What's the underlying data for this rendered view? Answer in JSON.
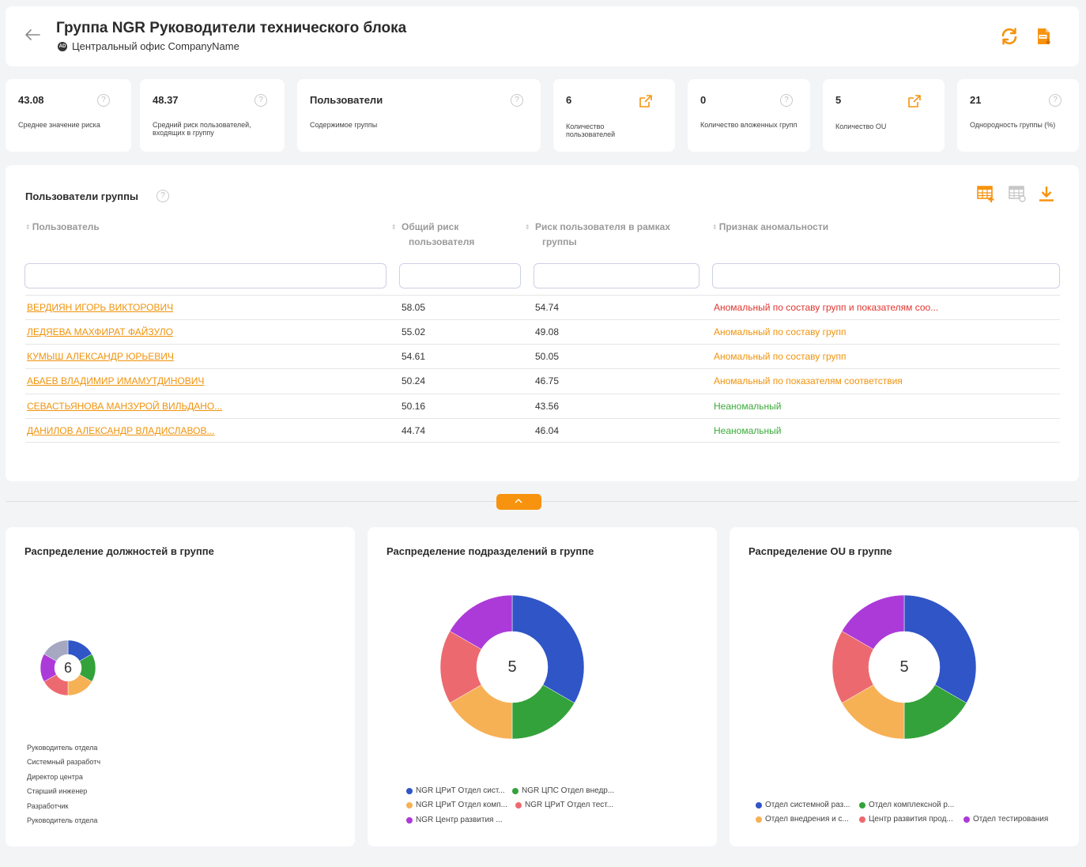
{
  "header": {
    "title": "Группа NGR Руководители технического блока",
    "badge": "AD",
    "subtitle": "Центральный офис CompanyName"
  },
  "stats": [
    {
      "value": "43.08",
      "label": "Среднее значение риска"
    },
    {
      "value": "48.37",
      "label": "Средний риск пользователей, входящих в группу"
    },
    {
      "value": "Пользователи",
      "label": "Содержимое группы"
    },
    {
      "value": "6",
      "label": "Количество пользователей"
    },
    {
      "value": "0",
      "label": "Количество вложенных групп"
    },
    {
      "value": "5",
      "label": "Количество OU"
    },
    {
      "value": "21",
      "label": "Однородность группы (%)"
    }
  ],
  "help_mark": "?",
  "users_table": {
    "title": "Пользователи группы",
    "columns": [
      "Пользователь",
      "Общий риск пользователя",
      "Риск пользователя в рамках группы",
      "Признак аномальности"
    ],
    "sort_glyph": "⇕",
    "rows": [
      {
        "user": "ВЕРДИЯН ИГОРЬ ВИКТОРОВИЧ",
        "total_risk": "58.05",
        "group_risk": "54.74",
        "status": "Аномальный по составу групп и показателям соо...",
        "status_color": "#e0342f"
      },
      {
        "user": "ЛЕДЯЕВА МАХФИРАТ ФАЙЗУЛО",
        "total_risk": "55.02",
        "group_risk": "49.08",
        "status": "Аномальный по составу групп",
        "status_color": "#f0930c"
      },
      {
        "user": "КУМЫШ АЛЕКСАНДР ЮРЬЕВИЧ",
        "total_risk": "54.61",
        "group_risk": "50.05",
        "status": "Аномальный по составу групп",
        "status_color": "#f0930c"
      },
      {
        "user": "АБАЕВ ВЛАДИМИР ИМАМУТДИНОВИЧ",
        "total_risk": "50.24",
        "group_risk": "46.75",
        "status": "Аномальный по показателям соответствия",
        "status_color": "#f0930c"
      },
      {
        "user": "СЕВАСТЬЯНОВА МАНЗУРОЙ ВИЛЬДАНО...",
        "total_risk": "50.16",
        "group_risk": "43.56",
        "status": "Неаномальный",
        "status_color": "#3aa93a"
      },
      {
        "user": "ДАНИЛОВ АЛЕКСАНДР ВЛАДИСЛАВОВ...",
        "total_risk": "44.74",
        "group_risk": "46.04",
        "status": "Неаномальный",
        "status_color": "#3aa93a"
      }
    ]
  },
  "colors": {
    "accent": "#f7930e",
    "link": "#f0930c",
    "blue": "#2f55c7",
    "green": "#33a23a",
    "orange": "#f7b155",
    "red": "#ec6a6f",
    "purple": "#ac3ad9",
    "gray": "#a6a8c2"
  },
  "icons": [
    "back-arrow-icon",
    "refresh-icon",
    "pdf-export-icon",
    "external-link-icon",
    "table-add-icon",
    "table-settings-icon",
    "download-icon",
    "chevron-up-icon"
  ],
  "chart_data": [
    {
      "type": "pie",
      "title": "Распределение должностей в группе",
      "center_label": "6",
      "categories": [
        "Руководитель отдела",
        "Системный разработч",
        "Директор центра",
        "Старший инженер",
        "Разработчик",
        "Руководитель отдела"
      ],
      "values": [
        1,
        1,
        1,
        1,
        1,
        1
      ],
      "colors": [
        "#2f55c7",
        "#33a23a",
        "#f7b155",
        "#ec6a6f",
        "#ac3ad9",
        "#a6a8c2"
      ],
      "legend": "bottom-left"
    },
    {
      "type": "pie",
      "title": "Распределение подразделений в группе",
      "center_label": "5",
      "categories": [
        "NGR ЦРиТ Отдел сист...",
        "NGR ЦПС Отдел внедр...",
        "NGR ЦРиТ Отдел комп...",
        "NGR ЦРиТ Отдел тест...",
        "NGR Центр развития ..."
      ],
      "values": [
        2,
        1,
        1,
        1,
        1
      ],
      "colors": [
        "#2f55c7",
        "#33a23a",
        "#f7b155",
        "#ec6a6f",
        "#ac3ad9"
      ],
      "legend": "bottom"
    },
    {
      "type": "pie",
      "title": "Распределение OU в группе",
      "center_label": "5",
      "categories": [
        "Отдел системной раз...",
        "Отдел комплексной р...",
        "Отдел внедрения и с...",
        "Центр развития прод...",
        "Отдел тестирования"
      ],
      "values": [
        2,
        1,
        1,
        1,
        1
      ],
      "colors": [
        "#2f55c7",
        "#33a23a",
        "#f7b155",
        "#ec6a6f",
        "#ac3ad9"
      ],
      "legend": "bottom"
    }
  ]
}
